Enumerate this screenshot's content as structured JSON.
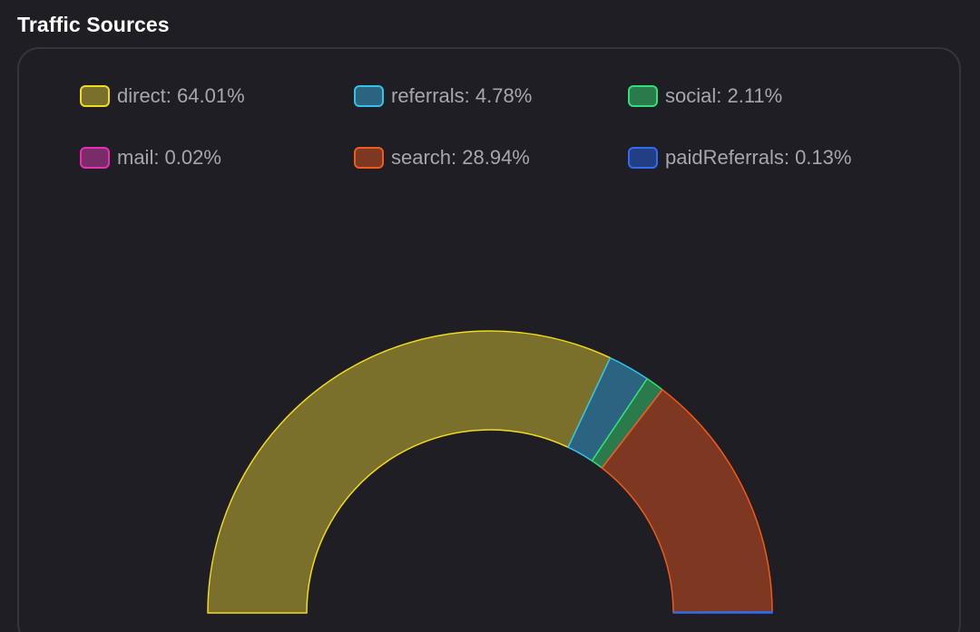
{
  "header": {
    "title": "Traffic Sources"
  },
  "chart_data": {
    "type": "pie",
    "variant": "half-doughnut",
    "legend_position": "top",
    "series": [
      {
        "name": "direct",
        "value": 64.01,
        "label": "direct: 64.01%",
        "fill": "#7a702b",
        "stroke": "#f2dc1f"
      },
      {
        "name": "referrals",
        "value": 4.78,
        "label": "referrals: 4.78%",
        "fill": "#2b6380",
        "stroke": "#2fc4e8"
      },
      {
        "name": "social",
        "value": 2.11,
        "label": "social: 2.11%",
        "fill": "#2b7a4b",
        "stroke": "#2fe07a"
      },
      {
        "name": "mail",
        "value": 0.02,
        "label": "mail: 0.02%",
        "fill": "#7a2b6a",
        "stroke": "#e82fb4"
      },
      {
        "name": "search",
        "value": 28.94,
        "label": "search: 28.94%",
        "fill": "#7e3822",
        "stroke": "#f05a1a"
      },
      {
        "name": "paidReferrals",
        "value": 0.13,
        "label": "paidReferrals: 0.13%",
        "fill": "#213f82",
        "stroke": "#2f6cf0"
      }
    ]
  }
}
